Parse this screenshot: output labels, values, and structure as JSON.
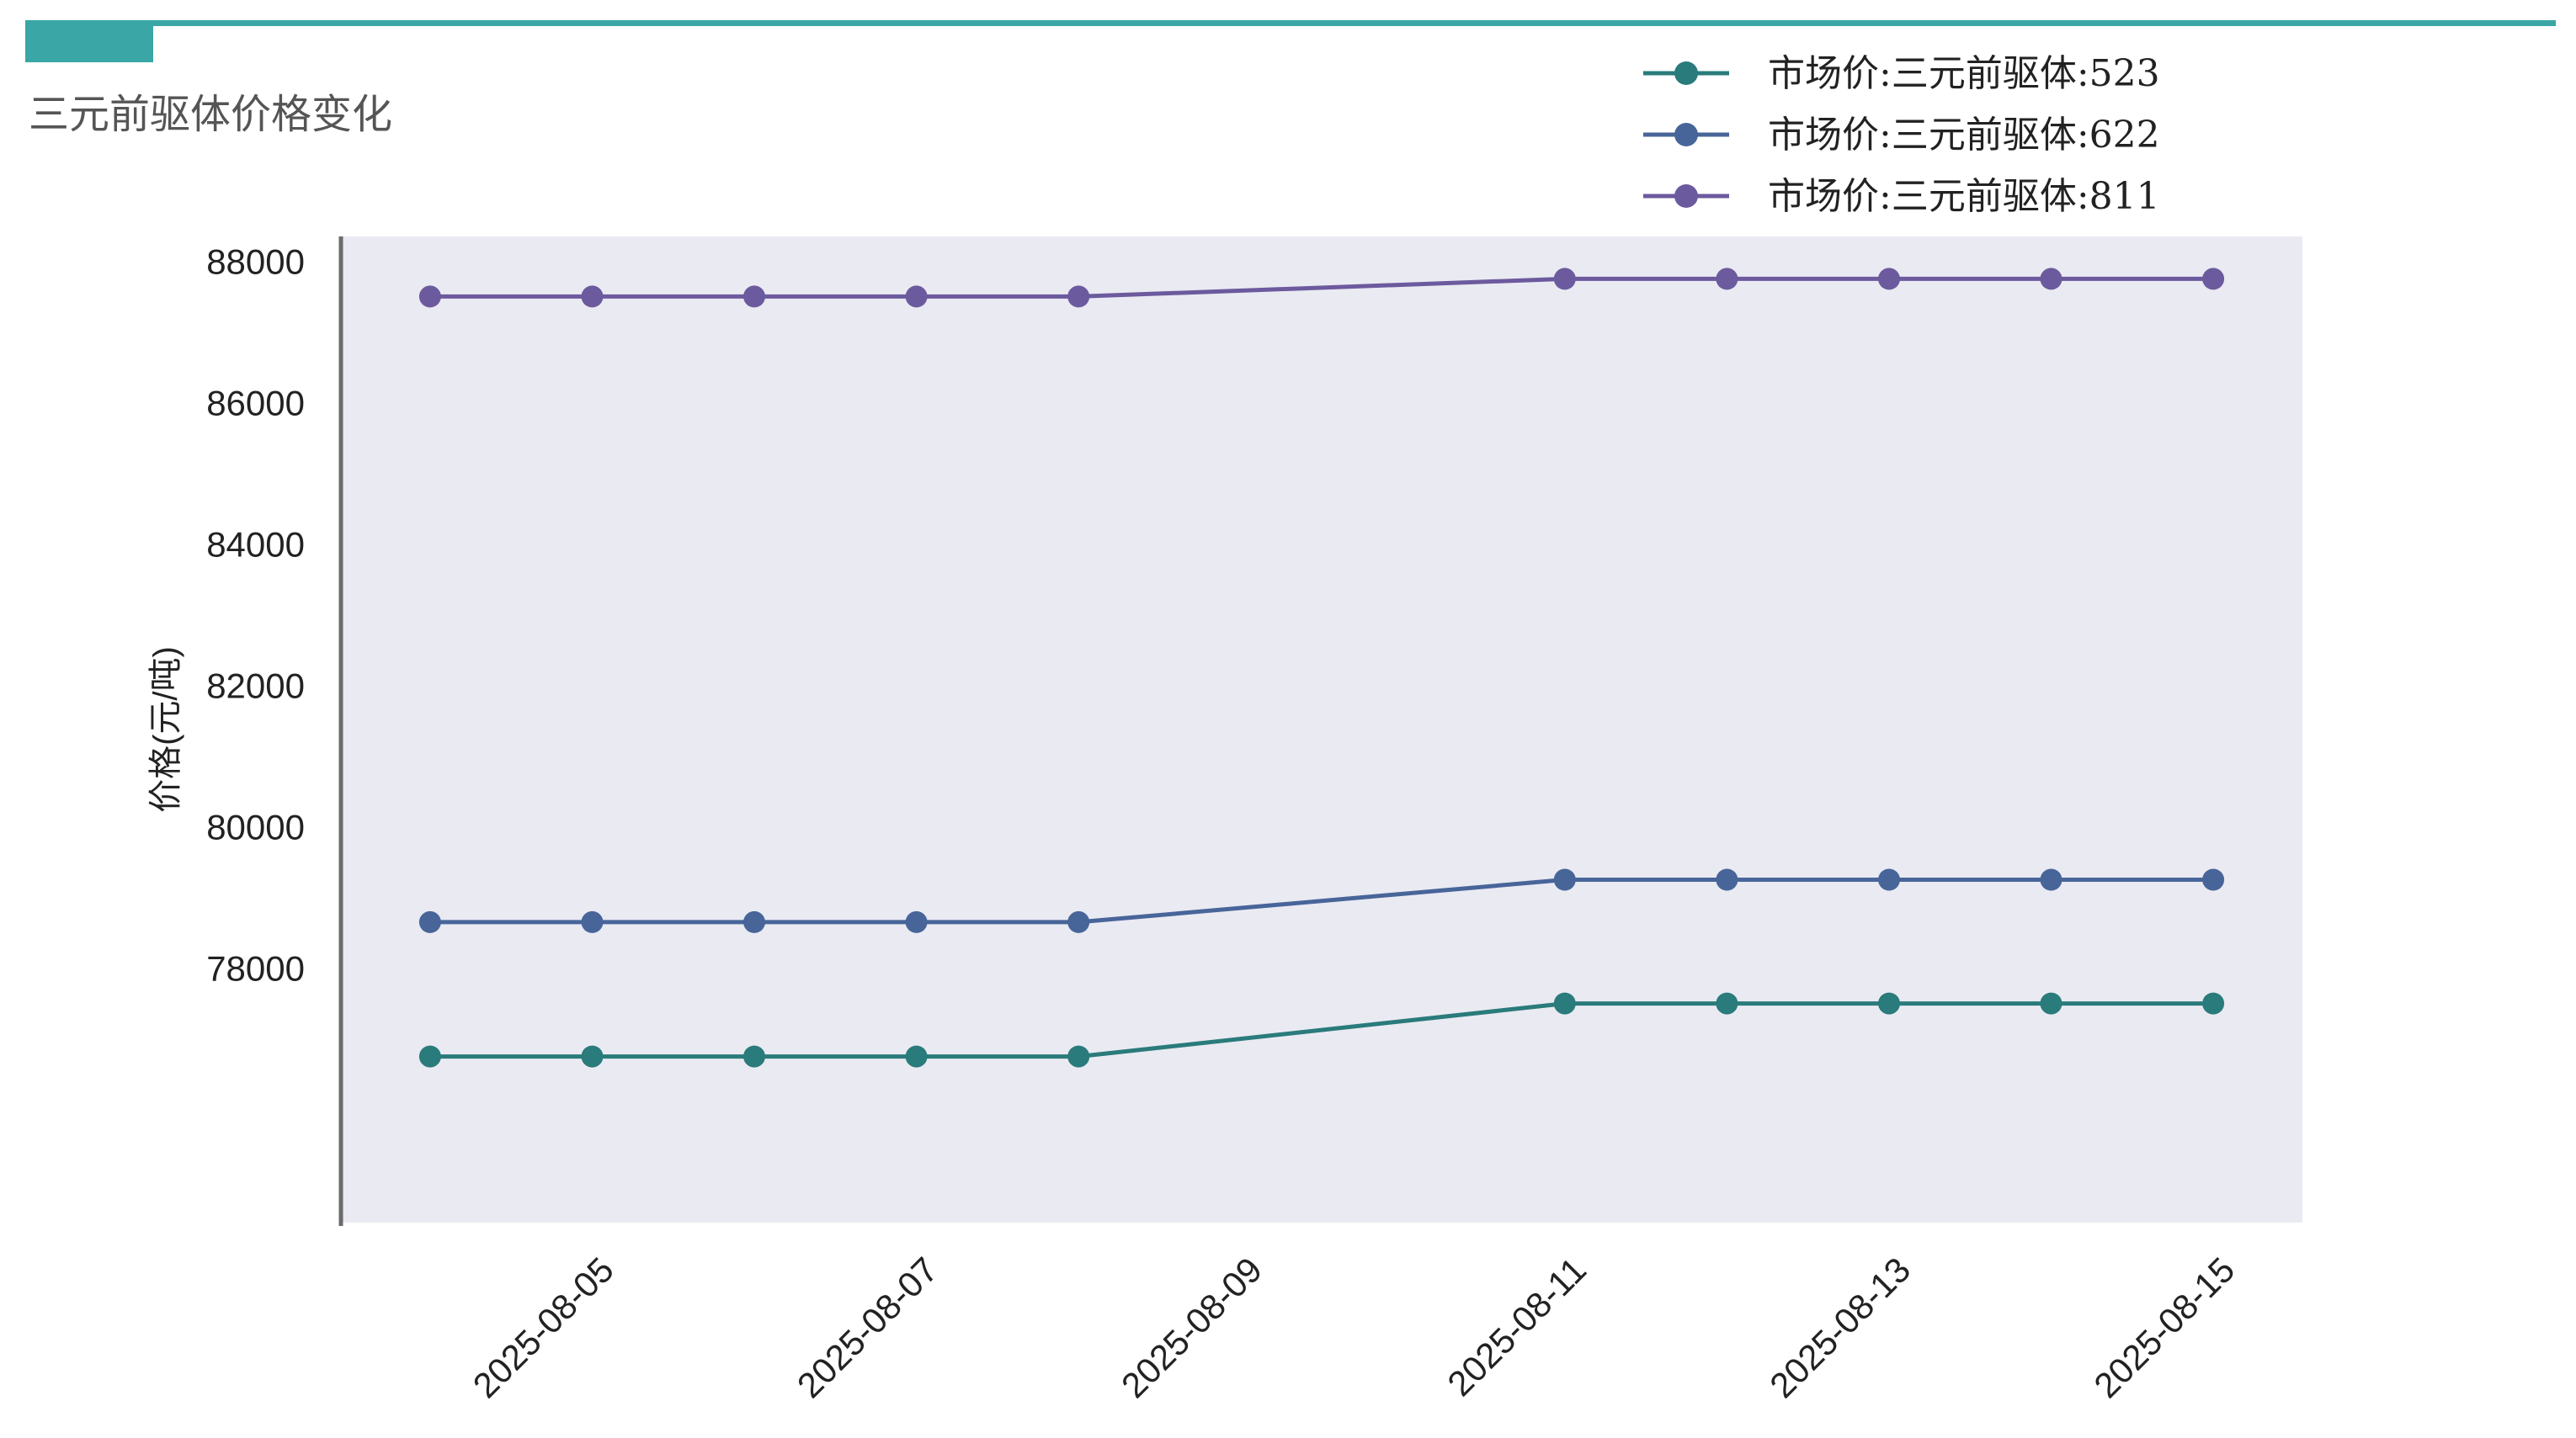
{
  "header": {
    "title": "三元前驱体价格变化",
    "accent_color": "#3aa6a6"
  },
  "chart_data": {
    "type": "line",
    "title": "三元前驱体价格变化",
    "xlabel": "",
    "ylabel": "价格(元/吨)",
    "x": [
      "2025-08-04",
      "2025-08-05",
      "2025-08-06",
      "2025-08-07",
      "2025-08-08",
      "2025-08-11",
      "2025-08-12",
      "2025-08-13",
      "2025-08-14",
      "2025-08-15"
    ],
    "xticks": [
      "2025-08-05",
      "2025-08-07",
      "2025-08-09",
      "2025-08-11",
      "2025-08-13",
      "2025-08-15"
    ],
    "xlim": [
      "2025-08-03.45",
      "2025-08-15.55"
    ],
    "yticks": [
      78000,
      80000,
      82000,
      84000,
      86000,
      88000
    ],
    "ylim": [
      74400,
      88350
    ],
    "plot_background": "#eaeaf2",
    "grid": false,
    "legend_position": "top-right",
    "series": [
      {
        "name": "市场价:三元前驱体:523",
        "color": "#2a7b7b",
        "values": [
          76750,
          76750,
          76750,
          76750,
          76750,
          77500,
          77500,
          77500,
          77500,
          77500
        ]
      },
      {
        "name": "市场价:三元前驱体:622",
        "color": "#48659a",
        "values": [
          78650,
          78650,
          78650,
          78650,
          78650,
          79250,
          79250,
          79250,
          79250,
          79250
        ]
      },
      {
        "name": "市场价:三元前驱体:811",
        "color": "#6c5a9e",
        "values": [
          87500,
          87500,
          87500,
          87500,
          87500,
          87750,
          87750,
          87750,
          87750,
          87750
        ]
      }
    ]
  }
}
